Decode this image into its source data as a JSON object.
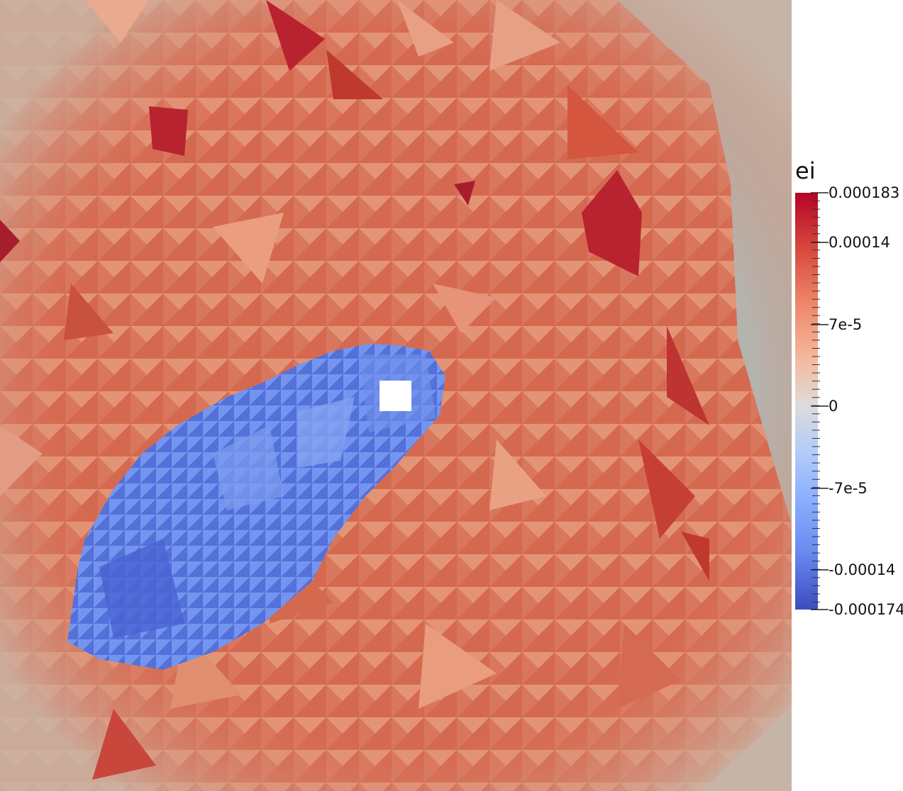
{
  "legend": {
    "title": "ei",
    "labels": [
      "0.000183",
      "0.00014",
      "7e-5",
      "0",
      "-7e-5",
      "-0.00014",
      "-0.000174"
    ],
    "range": [
      -0.000174,
      0.000183
    ],
    "colormap": [
      "#3b4cc0",
      "#dcdcdc",
      "#b40426"
    ]
  },
  "plot": {
    "background_color": "#b5b3ad",
    "field": "ei"
  }
}
